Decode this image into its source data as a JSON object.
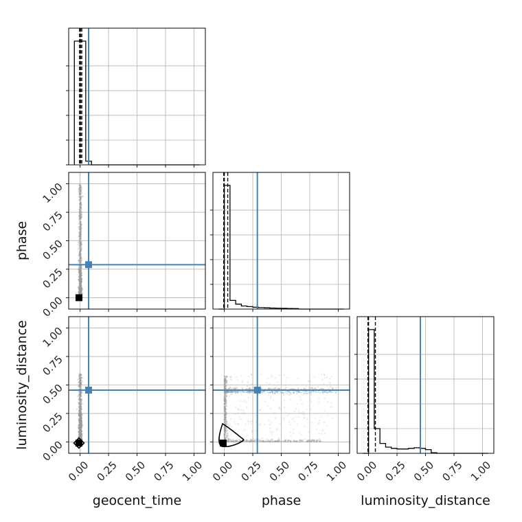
{
  "chart_data": {
    "type": "corner",
    "parameters": [
      "geocent_time",
      "phase",
      "luminosity_distance"
    ],
    "axis_labels": {
      "geocent_time": "geocent_time",
      "phase": "phase",
      "luminosity_distance": "luminosity_distance"
    },
    "range": [
      -0.1,
      1.1
    ],
    "ticks": [
      0.0,
      0.25,
      0.5,
      0.75,
      1.0
    ],
    "tick_labels": [
      "0.00",
      "0.25",
      "0.50",
      "0.75",
      "1.00"
    ],
    "grid": true,
    "truths": {
      "geocent_time": 0.075,
      "phase": 0.29,
      "luminosity_distance": 0.455
    },
    "truth_color": "#4682b4",
    "hist_color": "#000000",
    "scatter_color": "#9a9a9a",
    "histograms": {
      "geocent_time": {
        "bin_edges": [
          -0.05,
          0.0,
          0.05,
          0.1,
          1.05
        ],
        "counts": [
          1.0,
          1.0,
          0.03,
          0.0
        ],
        "quantiles": [
          -0.005,
          0.005,
          0.015
        ]
      },
      "phase": {
        "bin_edges": [
          -0.05,
          0.0,
          0.05,
          0.1,
          0.15,
          0.2,
          0.25,
          0.3,
          0.35,
          0.4,
          0.45,
          0.5,
          0.55,
          0.6,
          0.65,
          1.05
        ],
        "counts": [
          0.0,
          1.0,
          0.07,
          0.04,
          0.025,
          0.02,
          0.015,
          0.012,
          0.01,
          0.008,
          0.007,
          0.006,
          0.005,
          0.004,
          0.0
        ],
        "quantiles": [
          -0.005,
          0.0,
          0.03
        ]
      },
      "luminosity_distance": {
        "bin_edges": [
          -0.05,
          0.0,
          0.05,
          0.1,
          0.15,
          0.2,
          0.25,
          0.3,
          0.35,
          0.4,
          0.45,
          0.5,
          0.55,
          0.6,
          1.05
        ],
        "counts": [
          0.0,
          1.0,
          0.2,
          0.08,
          0.05,
          0.04,
          0.035,
          0.035,
          0.04,
          0.045,
          0.04,
          0.03,
          0.005,
          0.0
        ],
        "quantiles": [
          -0.005,
          0.0,
          0.06
        ]
      }
    },
    "scatter_panels": [
      {
        "x": "geocent_time",
        "y": "phase",
        "best_fit": [
          -0.01,
          0.0
        ]
      },
      {
        "x": "geocent_time",
        "y": "luminosity_distance",
        "best_fit": [
          -0.01,
          -0.01
        ]
      },
      {
        "x": "phase",
        "y": "luminosity_distance",
        "best_fit": [
          -0.01,
          -0.01
        ]
      }
    ]
  }
}
